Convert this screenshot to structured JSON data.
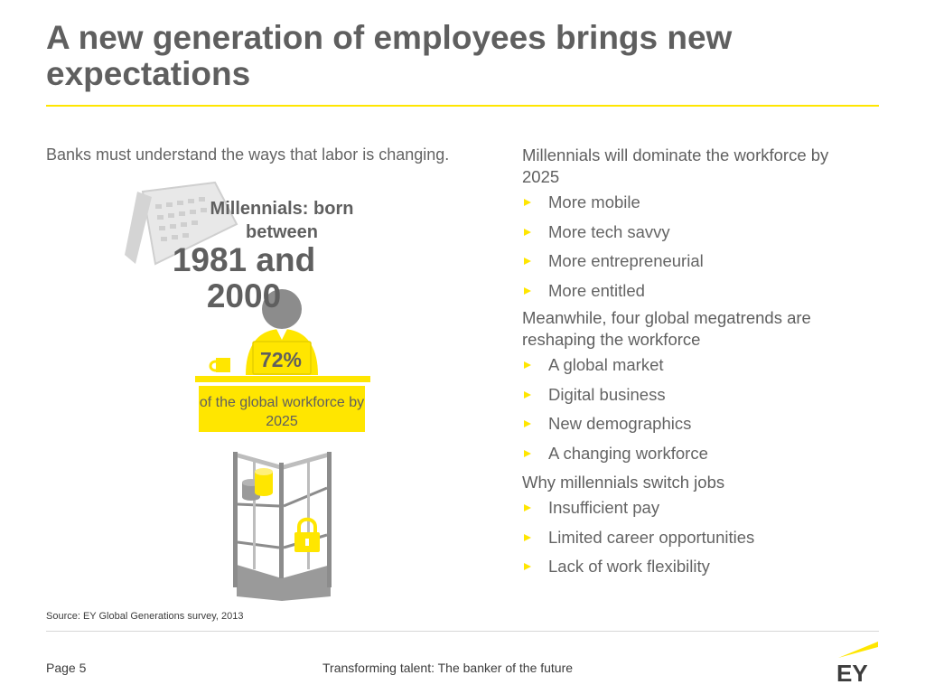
{
  "slide": {
    "title": "A new generation of employees brings new expectations",
    "intro": "Banks must understand the ways that labor is changing."
  },
  "infographic": {
    "label": "Millennials: born between",
    "years": "1981 and 2000",
    "percent": "72%",
    "percent_text": "of the global workforce by 2025"
  },
  "groups": [
    {
      "heading": "Millennials will dominate the workforce by 2025",
      "items": [
        "More mobile",
        "More tech savvy",
        "More entrepreneurial",
        "More entitled"
      ]
    },
    {
      "heading": "Meanwhile, four global megatrends are reshaping the workforce",
      "items": [
        "A global market",
        "Digital business",
        "New demographics",
        "A changing workforce"
      ]
    },
    {
      "heading": "Why millennials switch jobs",
      "items": [
        "Insufficient pay",
        "Limited career opportunities",
        "Lack of work flexibility"
      ]
    }
  ],
  "footer": {
    "source": "Source: EY Global Generations survey, 2013",
    "page": "Page 5",
    "title": "Transforming talent: The banker of the future",
    "logo_text": "EY"
  },
  "colors": {
    "accent": "#ffe600",
    "text": "#646464",
    "illustration_gray": "#8c8c8c"
  }
}
